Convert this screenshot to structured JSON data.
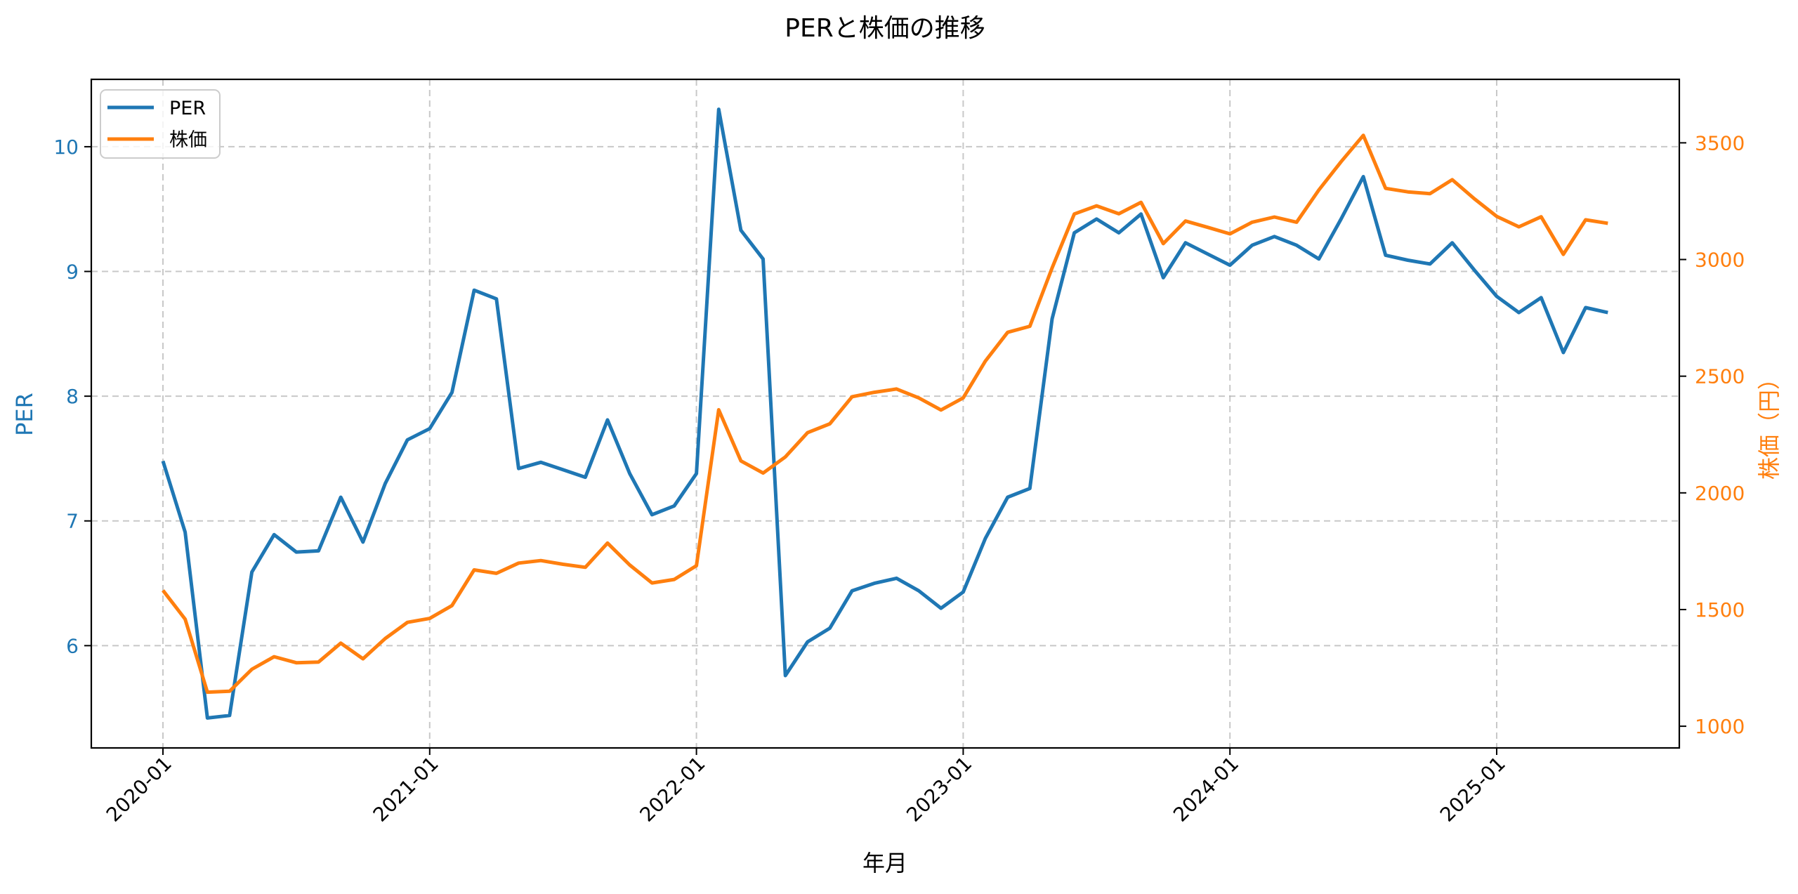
{
  "chart_data": {
    "type": "line",
    "title": "PERと株価の推移",
    "xlabel": "年月",
    "ylabel": "PER",
    "ylabel_right": "株価（円）",
    "x": [
      "2020-01",
      "2020-02",
      "2020-03",
      "2020-04",
      "2020-05",
      "2020-06",
      "2020-07",
      "2020-08",
      "2020-09",
      "2020-10",
      "2020-11",
      "2020-12",
      "2021-01",
      "2021-02",
      "2021-03",
      "2021-04",
      "2021-05",
      "2021-06",
      "2021-07",
      "2021-08",
      "2021-09",
      "2021-10",
      "2021-11",
      "2021-12",
      "2022-01",
      "2022-02",
      "2022-03",
      "2022-04",
      "2022-05",
      "2022-06",
      "2022-07",
      "2022-08",
      "2022-09",
      "2022-10",
      "2022-11",
      "2022-12",
      "2023-01",
      "2023-02",
      "2023-03",
      "2023-04",
      "2023-05",
      "2023-06",
      "2023-07",
      "2023-08",
      "2023-09",
      "2023-10",
      "2023-11",
      "2023-12",
      "2024-01",
      "2024-02",
      "2024-03",
      "2024-04",
      "2024-05",
      "2024-06",
      "2024-07",
      "2024-08",
      "2024-09",
      "2024-10",
      "2024-11",
      "2024-12",
      "2025-01",
      "2025-02",
      "2025-03",
      "2025-04",
      "2025-05",
      "2025-06"
    ],
    "x_tick_labels": [
      "2020-01",
      "2021-01",
      "2022-01",
      "2023-01",
      "2024-01",
      "2025-01"
    ],
    "series": [
      {
        "name": "PER",
        "axis": "left",
        "color": "#1f77b4",
        "values": [
          7.48,
          6.91,
          5.42,
          5.44,
          6.59,
          6.89,
          6.75,
          6.76,
          7.19,
          6.83,
          7.3,
          7.65,
          7.74,
          8.03,
          8.85,
          8.78,
          7.42,
          7.47,
          7.41,
          7.35,
          7.81,
          7.38,
          7.05,
          7.12,
          7.38,
          10.3,
          9.33,
          9.1,
          5.76,
          6.03,
          6.14,
          6.44,
          6.5,
          6.54,
          6.44,
          6.3,
          6.43,
          6.86,
          7.19,
          7.26,
          8.62,
          9.31,
          9.42,
          9.31,
          9.46,
          8.95,
          9.23,
          9.14,
          9.05,
          9.21,
          9.28,
          9.21,
          9.1,
          9.42,
          9.76,
          9.13,
          9.09,
          9.06,
          9.23,
          9.01,
          8.8,
          8.67,
          8.79,
          8.35,
          8.71,
          8.67
        ]
      },
      {
        "name": "株価",
        "axis": "right",
        "color": "#ff7f0e",
        "values": [
          1582,
          1459,
          1146,
          1150,
          1244,
          1298,
          1272,
          1275,
          1356,
          1289,
          1376,
          1445,
          1462,
          1517,
          1670,
          1655,
          1699,
          1710,
          1694,
          1681,
          1785,
          1691,
          1614,
          1629,
          1688,
          2356,
          2137,
          2085,
          2154,
          2258,
          2296,
          2412,
          2431,
          2445,
          2407,
          2355,
          2407,
          2565,
          2688,
          2714,
          2964,
          3195,
          3230,
          3196,
          3245,
          3068,
          3165,
          3138,
          3110,
          3160,
          3182,
          3160,
          3298,
          3419,
          3532,
          3305,
          3290,
          3282,
          3342,
          3260,
          3185,
          3140,
          3183,
          3022,
          3170,
          3155
        ]
      }
    ],
    "ylim": [
      5.18,
      10.54
    ],
    "ylim_right": [
      907,
      3772
    ],
    "yticks": [
      6,
      7,
      8,
      9,
      10
    ],
    "yticks_right": [
      1000,
      1500,
      2000,
      2500,
      3000,
      3500
    ],
    "grid": true,
    "grid_style": "dashed",
    "legend_position": "upper left",
    "left_axis_color": "#1f77b4",
    "right_axis_color": "#ff7f0e"
  }
}
